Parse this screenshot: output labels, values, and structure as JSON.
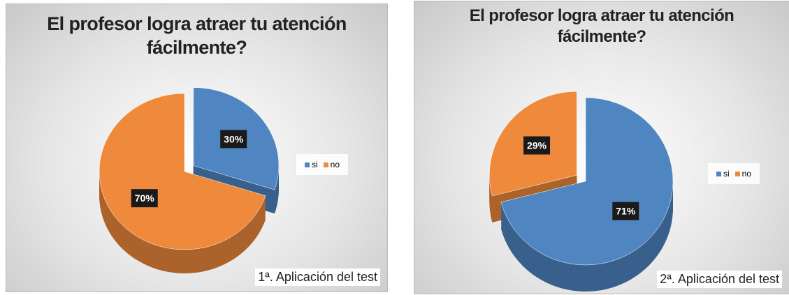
{
  "chart_data": [
    {
      "type": "pie",
      "title": "El profesor logra atraer tu atención fácilmente?",
      "categories": [
        "si",
        "no"
      ],
      "values": [
        30,
        70
      ],
      "value_labels": [
        "30%",
        "70%"
      ],
      "colors": [
        "#4f86c2",
        "#ef8a3c"
      ],
      "annotation": "1ª. Aplicación del test",
      "legend": "right"
    },
    {
      "type": "pie",
      "title": "El profesor logra atraer tu atención fácilmente?",
      "categories": [
        "si",
        "no"
      ],
      "values": [
        71,
        29
      ],
      "value_labels": [
        "71%",
        "29%"
      ],
      "colors": [
        "#4f86c2",
        "#ef8a3c"
      ],
      "annotation": "2ª. Aplicación del test",
      "legend": "right"
    }
  ]
}
